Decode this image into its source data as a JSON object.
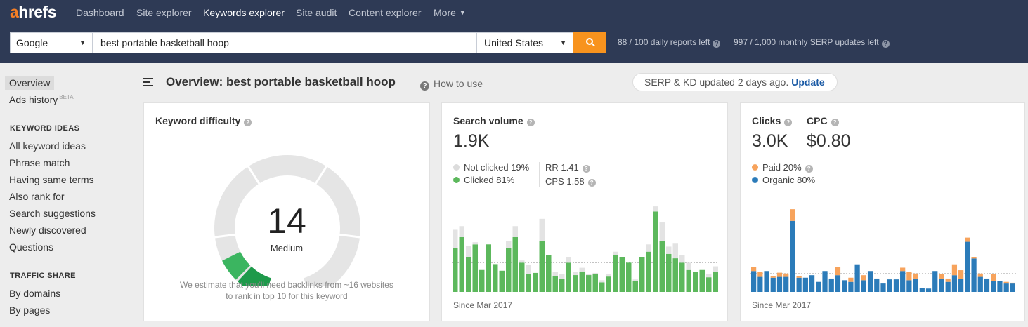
{
  "brand": {
    "logo_first": "a",
    "logo_rest": "hrefs",
    "accent": "#f57f25",
    "nav_bg": "#2e3a55"
  },
  "nav": {
    "dashboard": "Dashboard",
    "site_explorer": "Site explorer",
    "keywords_explorer": "Keywords explorer",
    "site_audit": "Site audit",
    "content_explorer": "Content explorer",
    "more": "More"
  },
  "search": {
    "engine": "Google",
    "query": "best portable basketball hoop",
    "country": "United States",
    "daily_reports": "88 / 100 daily reports left",
    "monthly_serp": "997 / 1,000 monthly SERP updates left"
  },
  "sidebar": {
    "overview": "Overview",
    "ads_history": "Ads history",
    "beta": "BETA",
    "keyword_ideas_head": "KEYWORD IDEAS",
    "keyword_ideas": [
      "All keyword ideas",
      "Phrase match",
      "Having same terms",
      "Also rank for",
      "Search suggestions",
      "Newly discovered",
      "Questions"
    ],
    "traffic_share_head": "TRAFFIC SHARE",
    "traffic_share": [
      "By domains",
      "By pages"
    ]
  },
  "header": {
    "title": "Overview: best portable basketball hoop",
    "how_to_use": "How to use",
    "updated": "SERP & KD updated 2 days ago.",
    "update_link": "Update"
  },
  "kd": {
    "title": "Keyword difficulty",
    "value": "14",
    "level": "Medium",
    "estimate_line1": "We estimate that you'll need backlinks from ~16 websites",
    "estimate_line2": "to rank in top 10 for this keyword",
    "score_fraction": 0.14,
    "fill_color": "#1e9a4b",
    "track_color": "#e5e5e5"
  },
  "volume": {
    "title": "Search volume",
    "value": "1.9K",
    "not_clicked": "Not clicked 19%",
    "clicked": "Clicked 81%",
    "rr": "RR 1.41",
    "cps": "CPS 1.58",
    "since": "Since Mar 2017",
    "clicked_color": "#5cb85c",
    "not_clicked_color": "#e3e3e3"
  },
  "clicks": {
    "title": "Clicks",
    "value": "3.0K",
    "cpc_title": "CPC",
    "cpc_value": "$0.80",
    "paid": "Paid 20%",
    "organic": "Organic 80%",
    "since": "Since Mar 2017",
    "paid_color": "#f7a35c",
    "organic_color": "#2b7bb9"
  },
  "chart_data": [
    {
      "type": "bar",
      "title": "Search volume",
      "series": [
        {
          "name": "Clicked",
          "values": [
            60,
            75,
            48,
            65,
            30,
            65,
            38,
            29,
            60,
            75,
            40,
            25,
            26,
            70,
            50,
            22,
            18,
            40,
            23,
            28,
            23,
            24,
            13,
            21,
            50,
            48,
            40,
            15,
            48,
            55,
            110,
            70,
            52,
            46,
            40,
            30,
            27,
            30,
            20,
            27
          ]
        },
        {
          "name": "Not clicked",
          "values": [
            25,
            15,
            15,
            3,
            0,
            0,
            0,
            0,
            10,
            15,
            3,
            12,
            0,
            30,
            0,
            5,
            6,
            8,
            4,
            5,
            1,
            2,
            3,
            4,
            5,
            0,
            0,
            2,
            0,
            10,
            7,
            25,
            10,
            20,
            10,
            10,
            0,
            0,
            5,
            8
          ]
        }
      ]
    },
    {
      "type": "bar",
      "title": "Clicks",
      "series": [
        {
          "name": "Organic",
          "values": [
            25,
            18,
            25,
            17,
            18,
            18,
            85,
            17,
            17,
            20,
            12,
            25,
            16,
            20,
            14,
            12,
            33,
            14,
            25,
            16,
            10,
            15,
            15,
            25,
            14,
            16,
            5,
            4,
            25,
            16,
            12,
            20,
            16,
            60,
            40,
            18,
            16,
            13,
            13,
            10,
            10
          ]
        },
        {
          "name": "Paid",
          "values": [
            5,
            6,
            0,
            2,
            5,
            4,
            14,
            2,
            0,
            0,
            0,
            0,
            0,
            10,
            0,
            5,
            0,
            6,
            0,
            0,
            0,
            0,
            0,
            4,
            10,
            6,
            0,
            0,
            0,
            5,
            4,
            13,
            10,
            5,
            2,
            4,
            0,
            8,
            0,
            2,
            1
          ]
        }
      ]
    }
  ]
}
